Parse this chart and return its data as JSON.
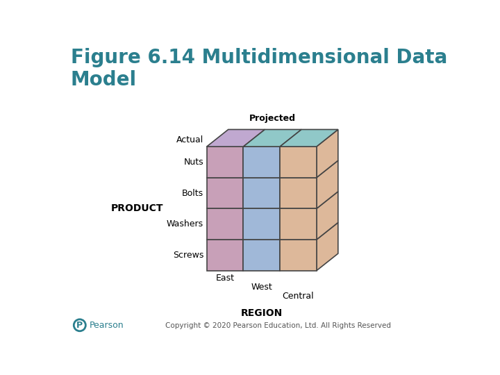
{
  "title": "Figure 6.14 Multidimensional Data\nModel",
  "title_color": "#2b7f8e",
  "title_fontsize": 20,
  "bg_color": "#ffffff",
  "copyright_text": "Copyright © 2020 Pearson Education, Ltd. All Rights Reserved",
  "label_product": "PRODUCT",
  "label_region": "REGION",
  "label_projected": "Projected",
  "label_actual": "Actual",
  "products": [
    "Nuts",
    "Bolts",
    "Washers",
    "Screws"
  ],
  "regions": [
    "East",
    "West",
    "Central"
  ],
  "color_front_col0": "#c8a0b8",
  "color_front_col1": "#a0b8d8",
  "color_front_col2": "#ddb89a",
  "color_top_col0": "#c0a8d0",
  "color_top_col1": "#90c8c8",
  "color_top_col2": "#90c8c8",
  "color_right_face": "#ddb89a",
  "color_edge": "#444444",
  "edge_lw": 1.2
}
